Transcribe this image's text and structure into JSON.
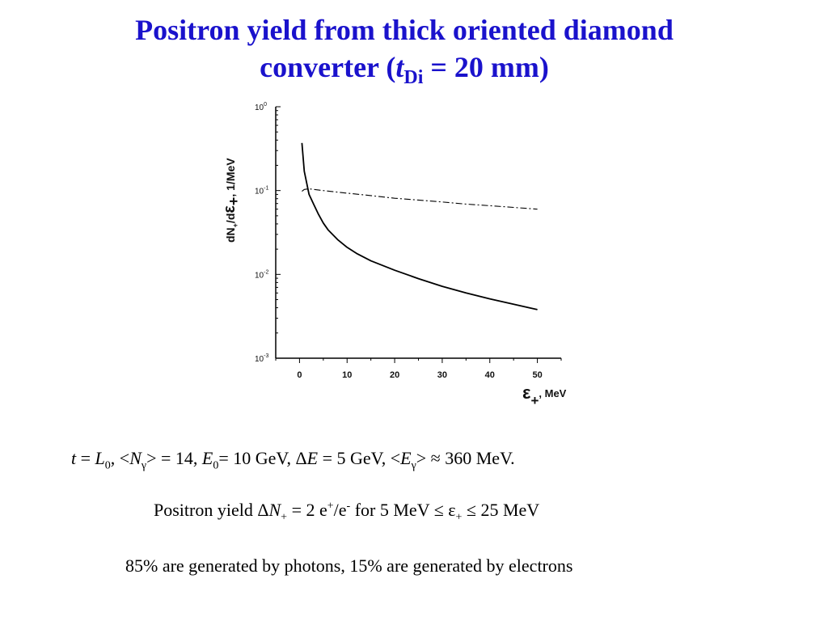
{
  "title": {
    "line1": "Positron yield from thick oriented diamond",
    "line2_prefix": "converter (",
    "t_symbol": "t",
    "t_subscript": "Di",
    "line2_suffix": " = 20 mm)"
  },
  "chart_data": {
    "type": "line",
    "ylabel": {
      "dN": "dN",
      "plus1": "+",
      "slash_d": "/d",
      "eps": "ε",
      "plus2": "+",
      "unit": ", 1/MeV"
    },
    "xlabel": {
      "eps": "ε",
      "plus": "+",
      "unit": ", MeV"
    },
    "xlim": [
      -5,
      55
    ],
    "ylim": [
      0.001,
      1
    ],
    "yscale": "log",
    "x_ticks": [
      0,
      10,
      20,
      30,
      40,
      50
    ],
    "y_ticks": [
      {
        "value": 1,
        "base": "10",
        "exp": "0"
      },
      {
        "value": 0.1,
        "base": "10",
        "exp": "-1"
      },
      {
        "value": 0.01,
        "base": "10",
        "exp": "-2"
      },
      {
        "value": 0.001,
        "base": "10",
        "exp": "-3"
      }
    ],
    "series": [
      {
        "style": "solid",
        "x": [
          0.5,
          1,
          2,
          3,
          4,
          5,
          6,
          8,
          10,
          12,
          15,
          20,
          25,
          30,
          35,
          40,
          45,
          50
        ],
        "y": [
          0.37,
          0.17,
          0.09,
          0.068,
          0.052,
          0.041,
          0.034,
          0.026,
          0.021,
          0.0178,
          0.0145,
          0.0112,
          0.0089,
          0.0072,
          0.006,
          0.0051,
          0.0044,
          0.0038
        ]
      },
      {
        "style": "dash-dot",
        "x": [
          0.5,
          1,
          2,
          3,
          5,
          10,
          15,
          20,
          25,
          30,
          35,
          40,
          45,
          50
        ],
        "y": [
          0.098,
          0.103,
          0.105,
          0.103,
          0.1,
          0.093,
          0.087,
          0.081,
          0.077,
          0.073,
          0.069,
          0.066,
          0.063,
          0.06
        ]
      }
    ]
  },
  "captions": {
    "params": {
      "t": "t",
      "eq_L": " = ",
      "L": "L",
      "L_sub": "0",
      "after_L": ",  <",
      "N": "N",
      "gamma1": "γ",
      "after_N": "> = 14,   ",
      "E0": "E",
      "E0_sub": "0",
      "after_E0": "= 10 GeV,  Δ",
      "E": "E",
      "after_E": " = 5 GeV,  <",
      "Eg": "E",
      "gamma2": "γ",
      "after_Eg": "> ≈ 360 MeV."
    },
    "yield": {
      "prefix": "Positron yield   Δ",
      "N": "N",
      "N_sub": "+",
      "mid": " = 2 e",
      "sup_plus": "+",
      "slash_e": "/e",
      "sup_minus": "-",
      "range": "   for   5 MeV ≤ ε",
      "eps_sub": "+",
      "end": " ≤ 25 MeV"
    },
    "generated": "85% are generated by photons,  15% are generated by electrons"
  }
}
